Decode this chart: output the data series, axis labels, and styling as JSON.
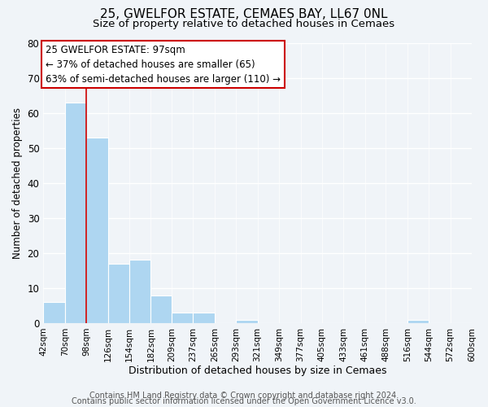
{
  "title": "25, GWELFOR ESTATE, CEMAES BAY, LL67 0NL",
  "subtitle": "Size of property relative to detached houses in Cemaes",
  "xlabel": "Distribution of detached houses by size in Cemaes",
  "ylabel": "Number of detached properties",
  "bin_edges": [
    42,
    70,
    98,
    126,
    154,
    182,
    209,
    237,
    265,
    293,
    321,
    349,
    377,
    405,
    433,
    461,
    488,
    516,
    544,
    572,
    600
  ],
  "bar_heights": [
    6,
    63,
    53,
    17,
    18,
    8,
    3,
    3,
    0,
    1,
    0,
    0,
    0,
    0,
    0,
    0,
    0,
    1,
    0,
    0
  ],
  "bar_color": "#aed6f1",
  "vline_color": "#cc0000",
  "vline_x": 98,
  "annotation_line1": "25 GWELFOR ESTATE: 97sqm",
  "annotation_line2": "← 37% of detached houses are smaller (65)",
  "annotation_line3": "63% of semi-detached houses are larger (110) →",
  "box_edge_color": "#cc0000",
  "ylim": [
    0,
    80
  ],
  "yticks": [
    0,
    10,
    20,
    30,
    40,
    50,
    60,
    70,
    80
  ],
  "tick_labels": [
    "42sqm",
    "70sqm",
    "98sqm",
    "126sqm",
    "154sqm",
    "182sqm",
    "209sqm",
    "237sqm",
    "265sqm",
    "293sqm",
    "321sqm",
    "349sqm",
    "377sqm",
    "405sqm",
    "433sqm",
    "461sqm",
    "488sqm",
    "516sqm",
    "544sqm",
    "572sqm",
    "600sqm"
  ],
  "footer1": "Contains HM Land Registry data © Crown copyright and database right 2024.",
  "footer2": "Contains public sector information licensed under the Open Government Licence v3.0.",
  "background_color": "#f0f4f8",
  "grid_color": "#dce8f0",
  "title_fontsize": 11,
  "subtitle_fontsize": 9.5,
  "ylabel_fontsize": 8.5,
  "xlabel_fontsize": 9,
  "footer_fontsize": 7,
  "annotation_fontsize": 8.5,
  "ytick_fontsize": 8.5,
  "xtick_fontsize": 7.5
}
